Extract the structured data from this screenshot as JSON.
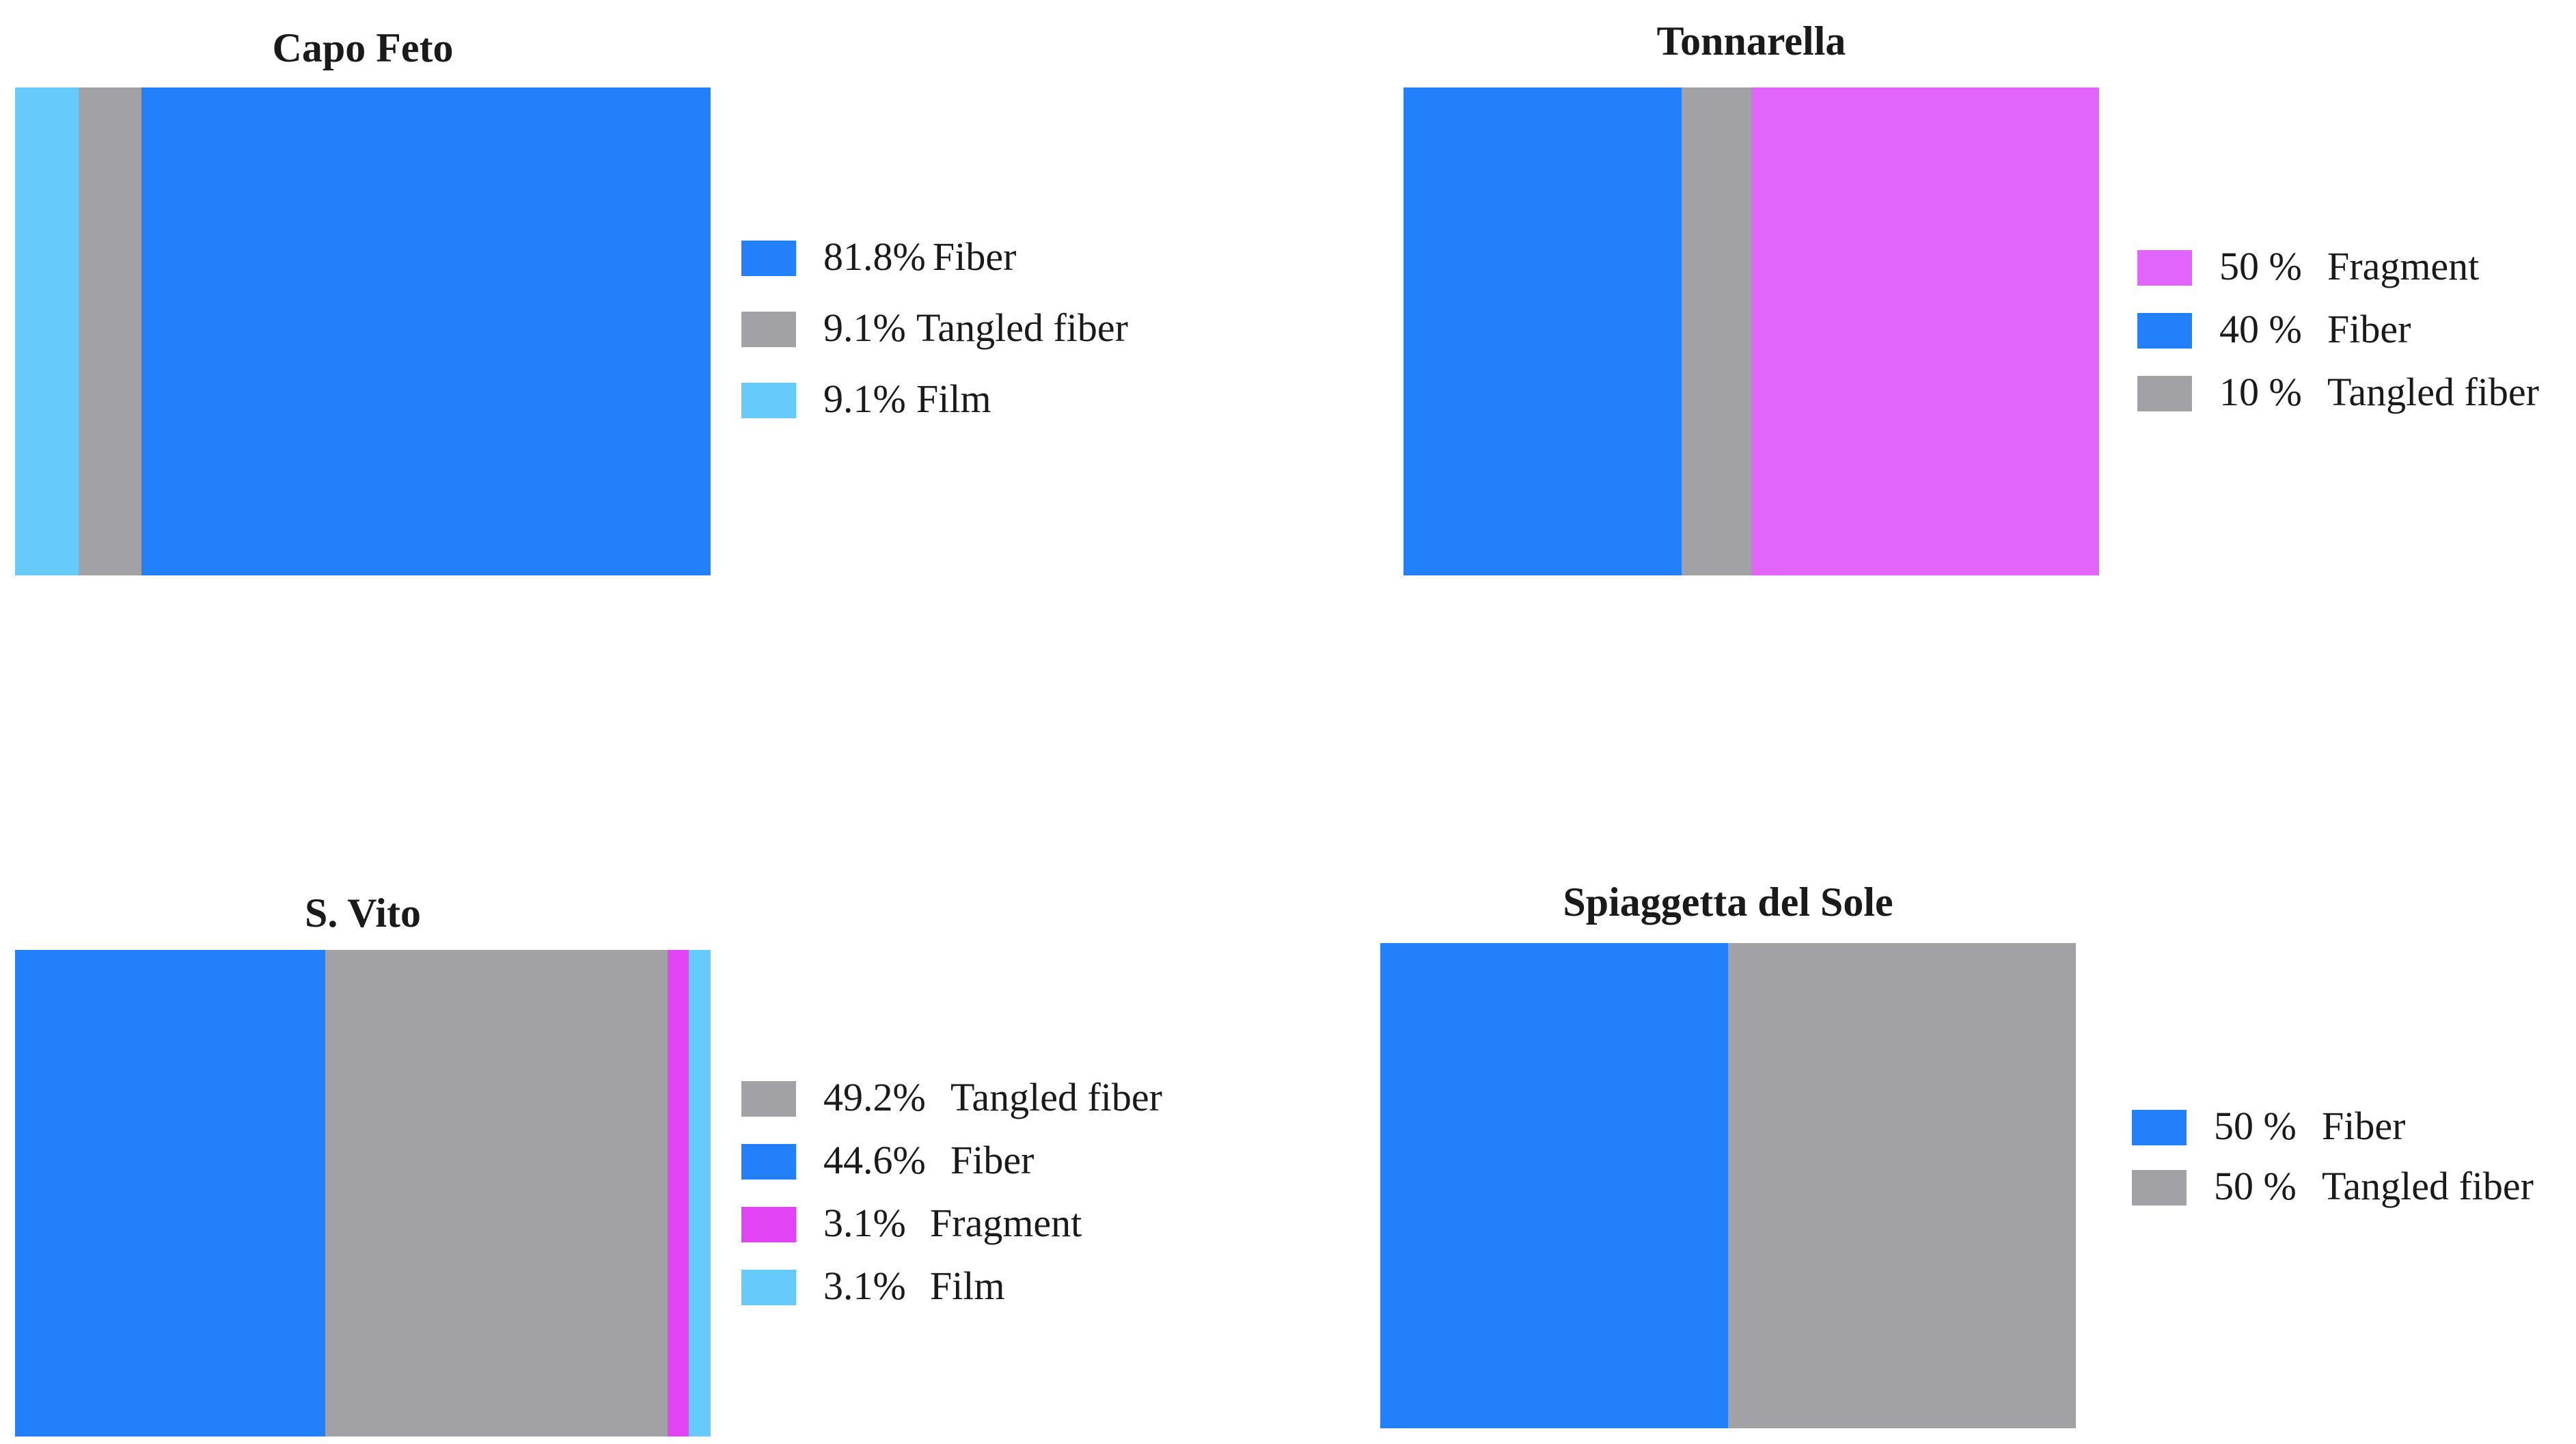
{
  "colors": {
    "Fiber": "#2380fb",
    "Tangled fiber": "#a2a2a6",
    "Film": "#66cbfa",
    "Fragment_pink": "#e164fb",
    "Fragment_magenta": "#e244f3"
  },
  "chart_data": [
    {
      "type": "bar",
      "stacked": "100%",
      "orientation": "horizontal",
      "title": "Capo Feto",
      "segments_left_to_right": [
        {
          "name": "Film",
          "value": 9.1,
          "color": "#66cbfa"
        },
        {
          "name": "Tangled fiber",
          "value": 9.1,
          "color": "#a2a2a6"
        },
        {
          "name": "Fiber",
          "value": 81.8,
          "color": "#2380fb"
        }
      ],
      "legend": [
        {
          "pct": "81.8%",
          "label": "Fiber",
          "color": "#2380fb"
        },
        {
          "pct": "9.1%",
          "label": "Tangled fiber",
          "color": "#a2a2a6"
        },
        {
          "pct": "9.1%",
          "label": "Film",
          "color": "#66cbfa"
        }
      ],
      "legend_placement": "right"
    },
    {
      "type": "bar",
      "stacked": "100%",
      "orientation": "horizontal",
      "title": "Tonnarella",
      "segments_left_to_right": [
        {
          "name": "Fiber",
          "value": 40,
          "color": "#2380fb"
        },
        {
          "name": "Tangled fiber",
          "value": 10,
          "color": "#a2a2a6"
        },
        {
          "name": "Fragment",
          "value": 50,
          "color": "#e164fb"
        }
      ],
      "legend": [
        {
          "pct": "50 %",
          "label": "Fragment",
          "color": "#e164fb"
        },
        {
          "pct": "40 %",
          "label": "Fiber",
          "color": "#2380fb"
        },
        {
          "pct": "10 %",
          "label": "Tangled fiber",
          "color": "#a2a2a6"
        }
      ],
      "legend_placement": "right"
    },
    {
      "type": "bar",
      "stacked": "100%",
      "orientation": "horizontal",
      "title": "S. Vito",
      "segments_left_to_right": [
        {
          "name": "Fiber",
          "value": 44.6,
          "color": "#2380fb"
        },
        {
          "name": "Tangled fiber",
          "value": 49.2,
          "color": "#a2a2a6"
        },
        {
          "name": "Fragment",
          "value": 3.1,
          "color": "#e244f3"
        },
        {
          "name": "Film",
          "value": 3.1,
          "color": "#66cbfa"
        }
      ],
      "legend": [
        {
          "pct": "49.2%",
          "label": "Tangled fiber",
          "color": "#a2a2a6"
        },
        {
          "pct": "44.6%",
          "label": "Fiber",
          "color": "#2380fb"
        },
        {
          "pct": "3.1%",
          "label": "Fragment",
          "color": "#e244f3"
        },
        {
          "pct": "3.1%",
          "label": "Film",
          "color": "#66cbfa"
        }
      ],
      "legend_placement": "right"
    },
    {
      "type": "bar",
      "stacked": "100%",
      "orientation": "horizontal",
      "title": "Spiaggetta del Sole",
      "segments_left_to_right": [
        {
          "name": "Fiber",
          "value": 50,
          "color": "#2380fb"
        },
        {
          "name": "Tangled fiber",
          "value": 50,
          "color": "#a2a2a6"
        }
      ],
      "legend": [
        {
          "pct": "50 %",
          "label": "Fiber",
          "color": "#2380fb"
        },
        {
          "pct": "50 %",
          "label": "Tangled fiber",
          "color": "#a2a2a6"
        }
      ],
      "legend_placement": "right"
    }
  ]
}
